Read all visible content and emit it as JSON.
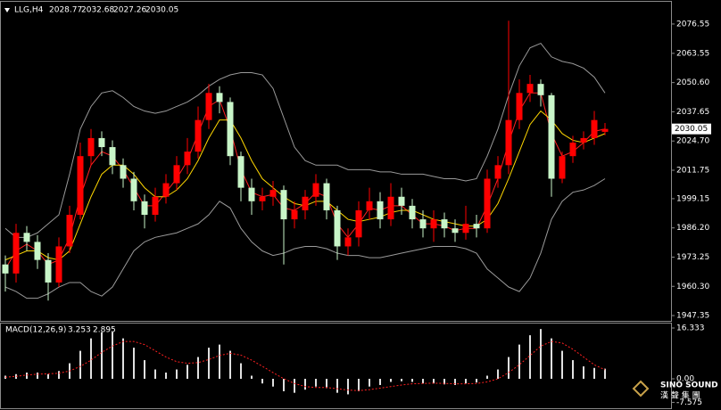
{
  "chart_data": [
    {
      "type": "candlestick",
      "title": "LLG,H4",
      "up_color": "#ff0000",
      "down_color": "#c8f5c8",
      "open": [
        1970,
        1966,
        1984,
        1980,
        1972,
        1962,
        1978,
        1992,
        2018,
        2026,
        2022,
        2014,
        2008,
        1998,
        1992,
        2000,
        2006,
        2014,
        2020,
        2034,
        2046,
        2042,
        2018,
        2004,
        1998,
        2000,
        2003,
        1990,
        1994,
        2000,
        2006,
        1994,
        1978,
        1982,
        1994,
        1998,
        1990,
        2000,
        1996,
        1990,
        1986,
        1990,
        1986,
        1984,
        1988,
        1986,
        2008,
        2014,
        2034,
        2046,
        2050,
        2045,
        2008,
        2018,
        2024,
        2026,
        2028.77
      ],
      "high": [
        1974,
        1988,
        1987,
        1983,
        1975,
        1982,
        1996,
        2024,
        2030,
        2029,
        2025,
        2017,
        2011,
        2001,
        2004,
        2010,
        2018,
        2026,
        2040,
        2050,
        2049,
        2044,
        2020,
        2008,
        2004,
        2007,
        2005,
        1998,
        2003,
        2010,
        2008,
        1996,
        1986,
        1998,
        2004,
        2002,
        2006,
        2004,
        1999,
        1994,
        1994,
        1993,
        1990,
        1996,
        1992,
        2012,
        2018,
        2078,
        2052,
        2054,
        2052,
        2046,
        2020,
        2027,
        2029,
        2038,
        2032.68
      ],
      "low": [
        1958,
        1962,
        1976,
        1968,
        1954,
        1960,
        1975,
        1990,
        2014,
        2018,
        2010,
        2004,
        1994,
        1986,
        1989,
        1997,
        2003,
        2010,
        2017,
        2030,
        2037,
        2014,
        1998,
        1992,
        1994,
        1996,
        1970,
        1986,
        1990,
        1996,
        1990,
        1972,
        1974,
        1978,
        1990,
        1986,
        1987,
        1992,
        1986,
        1982,
        1980,
        1982,
        1980,
        1981,
        1982,
        1984,
        2004,
        2010,
        2030,
        2042,
        2040,
        2000,
        2006,
        2015,
        2021,
        2023,
        2027.26
      ],
      "close": [
        1966,
        1984,
        1980,
        1972,
        1962,
        1978,
        1992,
        2018,
        2026,
        2022,
        2014,
        2008,
        1998,
        1992,
        2000,
        2006,
        2014,
        2020,
        2034,
        2046,
        2042,
        2018,
        2004,
        1998,
        2000,
        2003,
        1990,
        1994,
        2000,
        2006,
        1994,
        1978,
        1982,
        1994,
        1998,
        1990,
        2000,
        1996,
        1990,
        1986,
        1990,
        1986,
        1984,
        1988,
        1986,
        2008,
        2014,
        2034,
        2046,
        2050,
        2045,
        2008,
        2018,
        2024,
        2026,
        2034,
        2030.05
      ],
      "series": [
        {
          "color": "#9a9a9a",
          "values": [
            1986,
            1982,
            1982,
            1984,
            1988,
            1992,
            2010,
            2030,
            2040,
            2046,
            2047,
            2044,
            2040,
            2038,
            2037,
            2038,
            2040,
            2042,
            2045,
            2049,
            2052,
            2054,
            2055,
            2055,
            2054,
            2048,
            2035,
            2022,
            2016,
            2014,
            2014,
            2014,
            2012,
            2012,
            2012,
            2011,
            2011,
            2010,
            2010,
            2010,
            2009,
            2008,
            2008,
            2007,
            2008,
            2018,
            2030,
            2045,
            2058,
            2066,
            2068,
            2062,
            2060,
            2059,
            2057,
            2053,
            2046
          ]
        },
        {
          "color": "#9a9a9a",
          "values": [
            1960,
            1958,
            1955,
            1955,
            1957,
            1960,
            1962,
            1962,
            1958,
            1956,
            1960,
            1968,
            1976,
            1980,
            1982,
            1983,
            1984,
            1986,
            1988,
            1992,
            1998,
            1995,
            1986,
            1980,
            1976,
            1974,
            1975,
            1977,
            1978,
            1978,
            1977,
            1975,
            1974,
            1974,
            1973,
            1973,
            1974,
            1975,
            1976,
            1977,
            1978,
            1978,
            1978,
            1977,
            1975,
            1968,
            1964,
            1960,
            1958,
            1964,
            1975,
            1990,
            1998,
            2002,
            2003,
            2005,
            2008
          ]
        },
        {
          "color": "#ff2020",
          "values": [
            1968,
            1976,
            1979,
            1976,
            1970,
            1972,
            1982,
            2000,
            2014,
            2020,
            2018,
            2012,
            2004,
            1996,
            1996,
            2002,
            2008,
            2016,
            2028,
            2040,
            2043,
            2030,
            2012,
            2002,
            2000,
            2001,
            1995,
            1994,
            1997,
            2002,
            2000,
            1988,
            1982,
            1988,
            1995,
            1994,
            1996,
            1996,
            1992,
            1988,
            1988,
            1987,
            1985,
            1986,
            1986,
            1996,
            2008,
            2024,
            2038,
            2046,
            2046,
            2028,
            2018,
            2020,
            2024,
            2029,
            2030
          ]
        },
        {
          "color": "#ffd700",
          "values": [
            1972,
            1974,
            1976,
            1976,
            1973,
            1972,
            1976,
            1988,
            2000,
            2010,
            2014,
            2014,
            2010,
            2004,
            2000,
            2000,
            2003,
            2008,
            2016,
            2026,
            2034,
            2034,
            2026,
            2016,
            2008,
            2004,
            2000,
            1997,
            1996,
            1998,
            1998,
            1994,
            1990,
            1989,
            1990,
            1991,
            1993,
            1994,
            1994,
            1992,
            1990,
            1989,
            1988,
            1987,
            1987,
            1990,
            1997,
            2008,
            2020,
            2032,
            2038,
            2034,
            2028,
            2025,
            2024,
            2026,
            2028
          ]
        }
      ],
      "ylim": [
        1945.0,
        2086.4
      ],
      "yticks": [
        2076.55,
        2063.55,
        {
          "value": 2050.6,
          "label": "2050.60"
        },
        2037.65,
        {
          "value": 2024.7,
          "label": "2024.70"
        },
        2011.75,
        1999.15,
        {
          "value": 1986.2,
          "label": "1986.20"
        },
        1973.25,
        {
          "value": 1960.3,
          "label": "1960.30"
        },
        1947.35
      ]
    },
    {
      "type": "macd",
      "title": "MACD(12,26,9)",
      "values": [
        1,
        1.5,
        2,
        2,
        1.5,
        2.5,
        5,
        9,
        13,
        15,
        15,
        13,
        10,
        6,
        3,
        2,
        3,
        4.5,
        7,
        10,
        11,
        9,
        5,
        1,
        -1.5,
        -2.5,
        -4,
        -4.5,
        -3.5,
        -2.5,
        -3,
        -4.5,
        -5,
        -4,
        -2.5,
        -2,
        -1,
        -0.8,
        -1,
        -1.5,
        -1.5,
        -1.8,
        -2,
        -1.5,
        -1.2,
        1,
        3,
        7,
        11,
        14,
        16,
        13,
        9,
        6,
        4,
        3.5,
        3.253
      ],
      "color": "#e0e0e0",
      "signal": {
        "color": "#ff2020",
        "values": [
          0.5,
          0.8,
          1.2,
          1.5,
          1.6,
          1.8,
          2.5,
          4,
          6,
          8.5,
          10.5,
          12,
          12,
          11,
          9,
          7,
          5.5,
          5,
          5.2,
          6.2,
          7.5,
          8.2,
          7.6,
          6,
          4,
          2,
          0,
          -1.5,
          -2.5,
          -2.8,
          -2.8,
          -3.2,
          -3.6,
          -3.8,
          -3.5,
          -3,
          -2.5,
          -2,
          -1.6,
          -1.5,
          -1.4,
          -1.5,
          -1.6,
          -1.6,
          -1.5,
          -1,
          0,
          2,
          4.5,
          7.5,
          10.5,
          12,
          11.5,
          9.5,
          7,
          4.5,
          2.895
        ]
      },
      "ylim": [
        -9.46,
        18.05
      ],
      "yticks": [
        16.333,
        {
          "value": 0,
          "label": "0.00"
        },
        -7.575
      ]
    }
  ],
  "logo": {
    "text": "SINO SOUND",
    "subtext": "漢 聲 集 團"
  }
}
